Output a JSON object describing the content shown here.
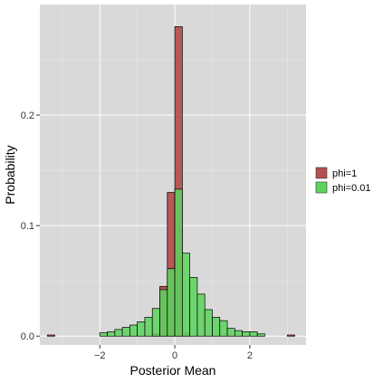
{
  "chart_data": {
    "type": "bar",
    "xlabel": "Posterior Mean",
    "ylabel": "Probability",
    "xlim": [
      -3.6,
      3.5
    ],
    "ylim": [
      -0.008,
      0.3
    ],
    "x_ticks": [
      {
        "value": -2,
        "label": "−2"
      },
      {
        "value": 0,
        "label": "0"
      },
      {
        "value": 2,
        "label": "2"
      }
    ],
    "y_ticks": [
      {
        "value": 0.0,
        "label": "0.0"
      },
      {
        "value": 0.1,
        "label": "0.1"
      },
      {
        "value": 0.2,
        "label": "0.2"
      }
    ],
    "grid": true,
    "legend_position": "right",
    "bin_width": 0.2,
    "series": [
      {
        "name": "phi=1",
        "color": "#b55050",
        "bin_centers": [
          -3.3,
          -0.5,
          -0.3,
          -0.1,
          0.1,
          0.3,
          3.1
        ],
        "values": [
          0.001,
          0.002,
          0.045,
          0.13,
          0.28,
          0.003,
          0.001
        ]
      },
      {
        "name": "phi=0.01",
        "color": "#5fd35f",
        "bin_centers": [
          -1.9,
          -1.7,
          -1.5,
          -1.3,
          -1.1,
          -0.9,
          -0.7,
          -0.5,
          -0.3,
          -0.1,
          0.1,
          0.3,
          0.5,
          0.7,
          0.9,
          1.1,
          1.3,
          1.5,
          1.7,
          1.9,
          2.1,
          2.3
        ],
        "values": [
          0.003,
          0.004,
          0.006,
          0.008,
          0.01,
          0.013,
          0.017,
          0.025,
          0.042,
          0.061,
          0.133,
          0.075,
          0.053,
          0.038,
          0.024,
          0.017,
          0.014,
          0.007,
          0.005,
          0.004,
          0.004,
          0.002
        ]
      }
    ]
  }
}
